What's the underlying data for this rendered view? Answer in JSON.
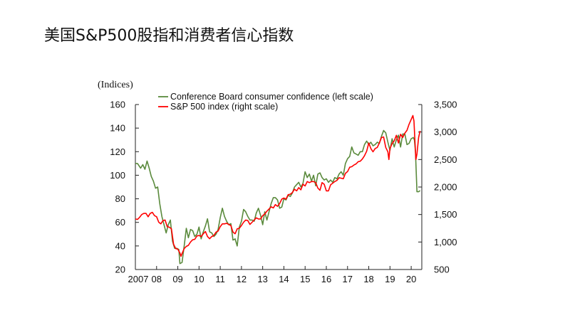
{
  "slide": {
    "title": "美国S&P500股指和消费者信心指数"
  },
  "colors": {
    "confidence": "#5a8a3c",
    "sp500": "#ff0000",
    "axis": "#222222",
    "text": "#111111"
  },
  "chart_data": {
    "type": "line",
    "left_unit": "(Indices)",
    "left_axis": {
      "range": [
        20,
        160
      ],
      "ticks": [
        "20",
        "40",
        "60",
        "80",
        "100",
        "120",
        "140",
        "160"
      ],
      "values": [
        20,
        40,
        60,
        80,
        100,
        120,
        140,
        160
      ]
    },
    "right_axis": {
      "range": [
        500,
        3500
      ],
      "ticks": [
        "500",
        "1,000",
        "1,500",
        "2,000",
        "2,500",
        "3,000",
        "3,500"
      ],
      "values": [
        500,
        1000,
        1500,
        2000,
        2500,
        3000,
        3500
      ]
    },
    "x_axis": {
      "range": [
        2007.0,
        2020.5
      ],
      "ticks": [
        "2007",
        "08",
        "09",
        "10",
        "11",
        "12",
        "13",
        "14",
        "15",
        "16",
        "17",
        "18",
        "19",
        "20"
      ],
      "values": [
        2007,
        2008,
        2009,
        2010,
        2011,
        2012,
        2013,
        2014,
        2015,
        2016,
        2017,
        2018,
        2019,
        2020
      ]
    },
    "legend": [
      "Conference Board consumer confidence (left scale)",
      "S&P 500 index (right scale)"
    ],
    "series": [
      {
        "name": "Conference Board consumer confidence (left scale)",
        "axis": "left",
        "points": [
          [
            2007.0,
            110
          ],
          [
            2007.1,
            110
          ],
          [
            2007.25,
            106
          ],
          [
            2007.35,
            109
          ],
          [
            2007.45,
            105
          ],
          [
            2007.55,
            112
          ],
          [
            2007.65,
            106
          ],
          [
            2007.75,
            99
          ],
          [
            2007.85,
            95
          ],
          [
            2007.95,
            89
          ],
          [
            2008.05,
            90
          ],
          [
            2008.15,
            76
          ],
          [
            2008.25,
            65
          ],
          [
            2008.35,
            58
          ],
          [
            2008.45,
            51
          ],
          [
            2008.55,
            58
          ],
          [
            2008.65,
            62
          ],
          [
            2008.75,
            44
          ],
          [
            2008.85,
            38
          ],
          [
            2008.95,
            38
          ],
          [
            2009.05,
            37
          ],
          [
            2009.1,
            25
          ],
          [
            2009.2,
            26
          ],
          [
            2009.3,
            40
          ],
          [
            2009.4,
            55
          ],
          [
            2009.5,
            47
          ],
          [
            2009.6,
            54
          ],
          [
            2009.7,
            53
          ],
          [
            2009.8,
            48
          ],
          [
            2009.9,
            50
          ],
          [
            2010.0,
            56
          ],
          [
            2010.1,
            46
          ],
          [
            2010.2,
            52
          ],
          [
            2010.3,
            57
          ],
          [
            2010.4,
            63
          ],
          [
            2010.5,
            52
          ],
          [
            2010.6,
            51
          ],
          [
            2010.7,
            48
          ],
          [
            2010.8,
            50
          ],
          [
            2010.9,
            54
          ],
          [
            2011.0,
            64
          ],
          [
            2011.1,
            72
          ],
          [
            2011.2,
            65
          ],
          [
            2011.3,
            61
          ],
          [
            2011.4,
            58
          ],
          [
            2011.5,
            59
          ],
          [
            2011.6,
            45
          ],
          [
            2011.7,
            46
          ],
          [
            2011.8,
            40
          ],
          [
            2011.9,
            56
          ],
          [
            2012.0,
            61
          ],
          [
            2012.1,
            71
          ],
          [
            2012.2,
            69
          ],
          [
            2012.3,
            65
          ],
          [
            2012.4,
            62
          ],
          [
            2012.5,
            62
          ],
          [
            2012.6,
            61
          ],
          [
            2012.7,
            68
          ],
          [
            2012.8,
            72
          ],
          [
            2012.9,
            66
          ],
          [
            2013.0,
            58
          ],
          [
            2013.1,
            69
          ],
          [
            2013.2,
            62
          ],
          [
            2013.3,
            69
          ],
          [
            2013.4,
            76
          ],
          [
            2013.5,
            81
          ],
          [
            2013.6,
            81
          ],
          [
            2013.7,
            79
          ],
          [
            2013.8,
            72
          ],
          [
            2013.9,
            73
          ],
          [
            2014.0,
            80
          ],
          [
            2014.1,
            79
          ],
          [
            2014.2,
            83
          ],
          [
            2014.3,
            82
          ],
          [
            2014.4,
            85
          ],
          [
            2014.5,
            90
          ],
          [
            2014.6,
            92
          ],
          [
            2014.7,
            94
          ],
          [
            2014.8,
            90
          ],
          [
            2014.9,
            93
          ],
          [
            2015.0,
            103
          ],
          [
            2015.1,
            98
          ],
          [
            2015.2,
            101
          ],
          [
            2015.3,
            95
          ],
          [
            2015.4,
            100
          ],
          [
            2015.5,
            91
          ],
          [
            2015.6,
            101
          ],
          [
            2015.7,
            102
          ],
          [
            2015.8,
            98
          ],
          [
            2015.9,
            96
          ],
          [
            2016.0,
            97
          ],
          [
            2016.1,
            94
          ],
          [
            2016.2,
            96
          ],
          [
            2016.3,
            94
          ],
          [
            2016.4,
            98
          ],
          [
            2016.5,
            97
          ],
          [
            2016.6,
            101
          ],
          [
            2016.7,
            103
          ],
          [
            2016.8,
            100
          ],
          [
            2016.9,
            110
          ],
          [
            2017.0,
            114
          ],
          [
            2017.1,
            116
          ],
          [
            2017.2,
            124
          ],
          [
            2017.3,
            119
          ],
          [
            2017.4,
            118
          ],
          [
            2017.5,
            117
          ],
          [
            2017.6,
            120
          ],
          [
            2017.7,
            120
          ],
          [
            2017.8,
            126
          ],
          [
            2017.9,
            129
          ],
          [
            2018.0,
            126
          ],
          [
            2018.1,
            128
          ],
          [
            2018.2,
            125
          ],
          [
            2018.3,
            126
          ],
          [
            2018.4,
            128
          ],
          [
            2018.5,
            127
          ],
          [
            2018.6,
            133
          ],
          [
            2018.7,
            138
          ],
          [
            2018.8,
            136
          ],
          [
            2018.9,
            128
          ],
          [
            2019.0,
            121
          ],
          [
            2019.1,
            131
          ],
          [
            2019.2,
            124
          ],
          [
            2019.3,
            130
          ],
          [
            2019.4,
            134
          ],
          [
            2019.5,
            124
          ],
          [
            2019.6,
            135
          ],
          [
            2019.7,
            135
          ],
          [
            2019.8,
            126
          ],
          [
            2019.9,
            127
          ],
          [
            2020.0,
            131
          ],
          [
            2020.1,
            132
          ],
          [
            2020.15,
            130
          ],
          [
            2020.2,
            120
          ],
          [
            2020.27,
            86
          ],
          [
            2020.35,
            86
          ],
          [
            2020.42,
            87
          ]
        ]
      },
      {
        "name": "S&P 500 index (right scale)",
        "axis": "right",
        "points": [
          [
            2007.0,
            1420
          ],
          [
            2007.1,
            1410
          ],
          [
            2007.2,
            1450
          ],
          [
            2007.3,
            1500
          ],
          [
            2007.4,
            1520
          ],
          [
            2007.5,
            1520
          ],
          [
            2007.6,
            1460
          ],
          [
            2007.7,
            1520
          ],
          [
            2007.8,
            1540
          ],
          [
            2007.9,
            1480
          ],
          [
            2008.0,
            1460
          ],
          [
            2008.1,
            1360
          ],
          [
            2008.2,
            1330
          ],
          [
            2008.3,
            1390
          ],
          [
            2008.4,
            1400
          ],
          [
            2008.5,
            1280
          ],
          [
            2008.6,
            1270
          ],
          [
            2008.7,
            1240
          ],
          [
            2008.75,
            1100
          ],
          [
            2008.8,
            960
          ],
          [
            2008.9,
            880
          ],
          [
            2009.0,
            870
          ],
          [
            2009.1,
            800
          ],
          [
            2009.15,
            740
          ],
          [
            2009.2,
            790
          ],
          [
            2009.3,
            880
          ],
          [
            2009.4,
            920
          ],
          [
            2009.5,
            940
          ],
          [
            2009.6,
            1000
          ],
          [
            2009.7,
            1040
          ],
          [
            2009.8,
            1050
          ],
          [
            2009.9,
            1110
          ],
          [
            2010.0,
            1120
          ],
          [
            2010.1,
            1100
          ],
          [
            2010.2,
            1150
          ],
          [
            2010.3,
            1190
          ],
          [
            2010.4,
            1100
          ],
          [
            2010.5,
            1060
          ],
          [
            2010.6,
            1100
          ],
          [
            2010.7,
            1120
          ],
          [
            2010.8,
            1180
          ],
          [
            2010.9,
            1200
          ],
          [
            2011.0,
            1280
          ],
          [
            2011.1,
            1330
          ],
          [
            2011.2,
            1330
          ],
          [
            2011.3,
            1340
          ],
          [
            2011.4,
            1320
          ],
          [
            2011.5,
            1300
          ],
          [
            2011.6,
            1180
          ],
          [
            2011.7,
            1150
          ],
          [
            2011.8,
            1240
          ],
          [
            2011.9,
            1250
          ],
          [
            2012.0,
            1300
          ],
          [
            2012.1,
            1360
          ],
          [
            2012.2,
            1400
          ],
          [
            2012.3,
            1390
          ],
          [
            2012.4,
            1320
          ],
          [
            2012.5,
            1360
          ],
          [
            2012.6,
            1400
          ],
          [
            2012.7,
            1440
          ],
          [
            2012.8,
            1420
          ],
          [
            2012.9,
            1420
          ],
          [
            2013.0,
            1480
          ],
          [
            2013.1,
            1510
          ],
          [
            2013.2,
            1560
          ],
          [
            2013.3,
            1600
          ],
          [
            2013.4,
            1640
          ],
          [
            2013.5,
            1620
          ],
          [
            2013.6,
            1680
          ],
          [
            2013.7,
            1650
          ],
          [
            2013.8,
            1700
          ],
          [
            2013.9,
            1780
          ],
          [
            2014.0,
            1800
          ],
          [
            2014.1,
            1780
          ],
          [
            2014.2,
            1860
          ],
          [
            2014.3,
            1870
          ],
          [
            2014.4,
            1900
          ],
          [
            2014.5,
            1960
          ],
          [
            2014.6,
            1930
          ],
          [
            2014.7,
            1990
          ],
          [
            2014.8,
            1950
          ],
          [
            2014.9,
            2050
          ],
          [
            2015.0,
            2020
          ],
          [
            2015.1,
            2100
          ],
          [
            2015.2,
            2080
          ],
          [
            2015.3,
            2100
          ],
          [
            2015.4,
            2100
          ],
          [
            2015.5,
            2080
          ],
          [
            2015.6,
            1980
          ],
          [
            2015.7,
            1940
          ],
          [
            2015.8,
            2080
          ],
          [
            2015.9,
            2050
          ],
          [
            2016.0,
            1930
          ],
          [
            2016.1,
            1930
          ],
          [
            2016.2,
            2040
          ],
          [
            2016.3,
            2070
          ],
          [
            2016.4,
            2100
          ],
          [
            2016.5,
            2120
          ],
          [
            2016.6,
            2170
          ],
          [
            2016.7,
            2160
          ],
          [
            2016.8,
            2150
          ],
          [
            2016.9,
            2250
          ],
          [
            2017.0,
            2280
          ],
          [
            2017.1,
            2360
          ],
          [
            2017.2,
            2370
          ],
          [
            2017.3,
            2400
          ],
          [
            2017.4,
            2420
          ],
          [
            2017.5,
            2460
          ],
          [
            2017.6,
            2470
          ],
          [
            2017.7,
            2510
          ],
          [
            2017.8,
            2570
          ],
          [
            2017.9,
            2650
          ],
          [
            2018.0,
            2800
          ],
          [
            2018.1,
            2700
          ],
          [
            2018.2,
            2640
          ],
          [
            2018.3,
            2700
          ],
          [
            2018.4,
            2720
          ],
          [
            2018.5,
            2800
          ],
          [
            2018.6,
            2900
          ],
          [
            2018.7,
            2910
          ],
          [
            2018.8,
            2720
          ],
          [
            2018.9,
            2640
          ],
          [
            2018.95,
            2500
          ],
          [
            2019.0,
            2700
          ],
          [
            2019.1,
            2790
          ],
          [
            2019.2,
            2840
          ],
          [
            2019.3,
            2940
          ],
          [
            2019.4,
            2800
          ],
          [
            2019.5,
            2960
          ],
          [
            2019.6,
            2900
          ],
          [
            2019.7,
            2980
          ],
          [
            2019.8,
            3030
          ],
          [
            2019.9,
            3140
          ],
          [
            2020.0,
            3230
          ],
          [
            2020.08,
            3300
          ],
          [
            2020.13,
            3200
          ],
          [
            2020.18,
            2800
          ],
          [
            2020.22,
            2500
          ],
          [
            2020.27,
            2600
          ],
          [
            2020.35,
            2900
          ],
          [
            2020.42,
            3020
          ]
        ]
      }
    ]
  }
}
